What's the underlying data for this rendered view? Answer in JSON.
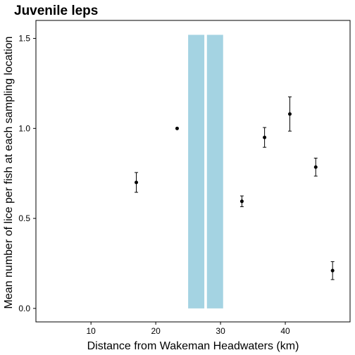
{
  "chart_data": {
    "type": "scatter",
    "title": "Juvenile leps",
    "xlabel": "Distance from Wakeman Headwaters (km)",
    "ylabel": "Mean number of lice per fish at each sampling location",
    "xlim": [
      1.5,
      50
    ],
    "ylim": [
      -0.075,
      1.6
    ],
    "xticks": [
      10,
      20,
      30,
      40
    ],
    "yticks": [
      0.0,
      0.5,
      1.0,
      1.5
    ],
    "ytick_labels": [
      "0.0",
      "0.5",
      "1.0",
      "1.5"
    ],
    "grid": false,
    "legend": "none",
    "shaded_bands": [
      {
        "x0": 25.0,
        "x1": 27.5,
        "y0": 0.0,
        "y1": 1.52,
        "color": "#a4d3e2"
      },
      {
        "x0": 27.9,
        "x1": 30.4,
        "y0": 0.0,
        "y1": 1.52,
        "color": "#a4d3e2"
      }
    ],
    "points": [
      {
        "x": 17.0,
        "y": 0.7,
        "err_low": 0.645,
        "err_high": 0.755
      },
      {
        "x": 23.3,
        "y": 1.0,
        "err_low": 1.0,
        "err_high": 1.0
      },
      {
        "x": 33.3,
        "y": 0.595,
        "err_low": 0.565,
        "err_high": 0.625
      },
      {
        "x": 36.8,
        "y": 0.95,
        "err_low": 0.895,
        "err_high": 1.005
      },
      {
        "x": 40.7,
        "y": 1.08,
        "err_low": 0.985,
        "err_high": 1.175
      },
      {
        "x": 44.7,
        "y": 0.785,
        "err_low": 0.735,
        "err_high": 0.835
      },
      {
        "x": 47.3,
        "y": 0.21,
        "err_low": 0.16,
        "err_high": 0.26
      }
    ]
  }
}
